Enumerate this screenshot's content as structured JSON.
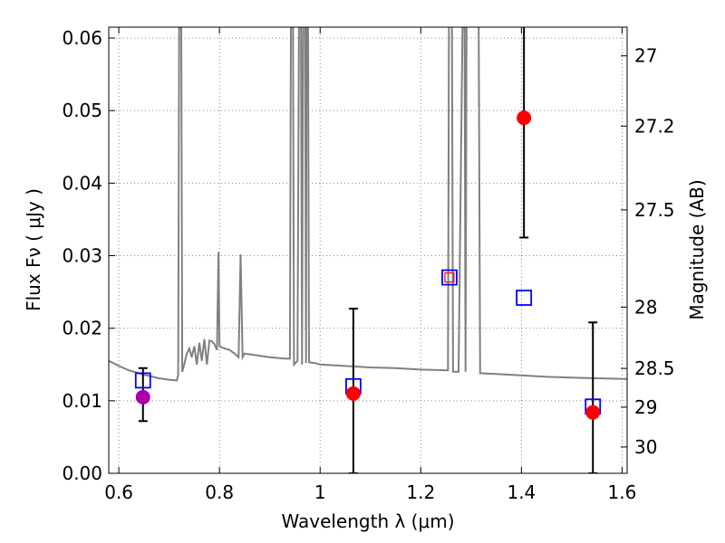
{
  "chart_data": {
    "type": "scatter",
    "xlabel": "Wavelength  λ (μm)",
    "ylabel": "Flux  Fν  ( μJy )",
    "ylabel_right": "Magnitude (AB)",
    "xlim": [
      0.58,
      1.61
    ],
    "ylim": [
      0.0,
      0.0615
    ],
    "grid": true,
    "x_ticks": [
      {
        "value": 0.6,
        "label": "0.6"
      },
      {
        "value": 0.8,
        "label": "0.8"
      },
      {
        "value": 1.0,
        "label": "1"
      },
      {
        "value": 1.2,
        "label": "1.2"
      },
      {
        "value": 1.4,
        "label": "1.4"
      },
      {
        "value": 1.6,
        "label": "1.6"
      }
    ],
    "y_ticks": [
      {
        "value": 0.0,
        "label": "0.00"
      },
      {
        "value": 0.01,
        "label": "0.01"
      },
      {
        "value": 0.02,
        "label": "0.02"
      },
      {
        "value": 0.03,
        "label": "0.03"
      },
      {
        "value": 0.04,
        "label": "0.04"
      },
      {
        "value": 0.05,
        "label": "0.05"
      },
      {
        "value": 0.06,
        "label": "0.06"
      }
    ],
    "right_ticks": [
      {
        "value": 27.0,
        "label": "27"
      },
      {
        "value": 27.2,
        "label": "27.2"
      },
      {
        "value": 27.5,
        "label": "27.5"
      },
      {
        "value": 28.0,
        "label": "28"
      },
      {
        "value": 28.5,
        "label": "28.5"
      },
      {
        "value": 29.0,
        "label": "29"
      },
      {
        "value": 30.0,
        "label": "30"
      }
    ],
    "colors": {
      "template": "#808080",
      "observed": "#ff0000",
      "observed_optical": "#aa00aa",
      "model": "#0000ff",
      "errorbar": "#000000",
      "grid": "#888888"
    },
    "series": [
      {
        "kind": "template",
        "points": [
          [
            0.58,
            0.0155
          ],
          [
            0.6,
            0.0148
          ],
          [
            0.62,
            0.0142
          ],
          [
            0.65,
            0.0136
          ],
          [
            0.68,
            0.0131
          ],
          [
            0.7,
            0.0129
          ],
          [
            0.715,
            0.0128
          ],
          [
            0.718,
            0.0135
          ],
          [
            0.72,
            0.062
          ],
          [
            0.724,
            0.062
          ],
          [
            0.726,
            0.014
          ],
          [
            0.73,
            0.015
          ],
          [
            0.735,
            0.0165
          ],
          [
            0.74,
            0.0172
          ],
          [
            0.745,
            0.016
          ],
          [
            0.75,
            0.0175
          ],
          [
            0.755,
            0.015
          ],
          [
            0.76,
            0.018
          ],
          [
            0.765,
            0.0155
          ],
          [
            0.77,
            0.0185
          ],
          [
            0.775,
            0.015
          ],
          [
            0.78,
            0.0183
          ],
          [
            0.785,
            0.0182
          ],
          [
            0.79,
            0.0178
          ],
          [
            0.795,
            0.017
          ],
          [
            0.798,
            0.0305
          ],
          [
            0.8,
            0.0175
          ],
          [
            0.81,
            0.0172
          ],
          [
            0.82,
            0.017
          ],
          [
            0.83,
            0.0165
          ],
          [
            0.838,
            0.016
          ],
          [
            0.842,
            0.0302
          ],
          [
            0.846,
            0.016
          ],
          [
            0.85,
            0.0165
          ],
          [
            0.87,
            0.0163
          ],
          [
            0.9,
            0.016
          ],
          [
            0.93,
            0.0158
          ],
          [
            0.94,
            0.0158
          ],
          [
            0.942,
            0.062
          ],
          [
            0.946,
            0.062
          ],
          [
            0.948,
            0.015
          ],
          [
            0.955,
            0.0155
          ],
          [
            0.958,
            0.062
          ],
          [
            0.962,
            0.062
          ],
          [
            0.964,
            0.015
          ],
          [
            0.966,
            0.062
          ],
          [
            0.97,
            0.062
          ],
          [
            0.972,
            0.0152
          ],
          [
            0.973,
            0.062
          ],
          [
            0.976,
            0.062
          ],
          [
            0.978,
            0.0153
          ],
          [
            0.99,
            0.0152
          ],
          [
            1.0,
            0.015
          ],
          [
            1.05,
            0.0148
          ],
          [
            1.1,
            0.0146
          ],
          [
            1.15,
            0.0145
          ],
          [
            1.2,
            0.0143
          ],
          [
            1.254,
            0.0142
          ],
          [
            1.256,
            0.062
          ],
          [
            1.262,
            0.062
          ],
          [
            1.264,
            0.014
          ],
          [
            1.275,
            0.014
          ],
          [
            1.283,
            0.062
          ],
          [
            1.287,
            0.062
          ],
          [
            1.289,
            0.014
          ],
          [
            1.291,
            0.062
          ],
          [
            1.297,
            0.062
          ],
          [
            1.31,
            0.062
          ],
          [
            1.315,
            0.062
          ],
          [
            1.318,
            0.0138
          ],
          [
            1.35,
            0.0137
          ],
          [
            1.4,
            0.0135
          ],
          [
            1.45,
            0.0133
          ],
          [
            1.5,
            0.0132
          ],
          [
            1.55,
            0.0131
          ],
          [
            1.61,
            0.013
          ]
        ]
      },
      {
        "kind": "observed",
        "points": [
          {
            "x": 0.648,
            "y": 0.0105,
            "yerr": [
              0.0072,
              0.0145
            ],
            "color": "#aa00aa"
          },
          {
            "x": 1.066,
            "y": 0.011,
            "yerr": [
              0.0,
              0.0227
            ],
            "color": "#ff0000"
          },
          {
            "x": 1.405,
            "y": 0.049,
            "yerr": [
              0.0325,
              0.062
            ],
            "color": "#ff0000"
          },
          {
            "x": 1.542,
            "y": 0.0084,
            "yerr": [
              0.0,
              0.0208
            ],
            "color": "#ff0000"
          }
        ]
      },
      {
        "kind": "model",
        "points": [
          {
            "x": 0.648,
            "y": 0.0128,
            "inner": null
          },
          {
            "x": 1.066,
            "y": 0.012,
            "inner": null
          },
          {
            "x": 1.257,
            "y": 0.027,
            "inner": "#ff0000"
          },
          {
            "x": 1.405,
            "y": 0.0242,
            "inner": null
          },
          {
            "x": 1.542,
            "y": 0.0092,
            "inner": null
          }
        ]
      }
    ]
  }
}
